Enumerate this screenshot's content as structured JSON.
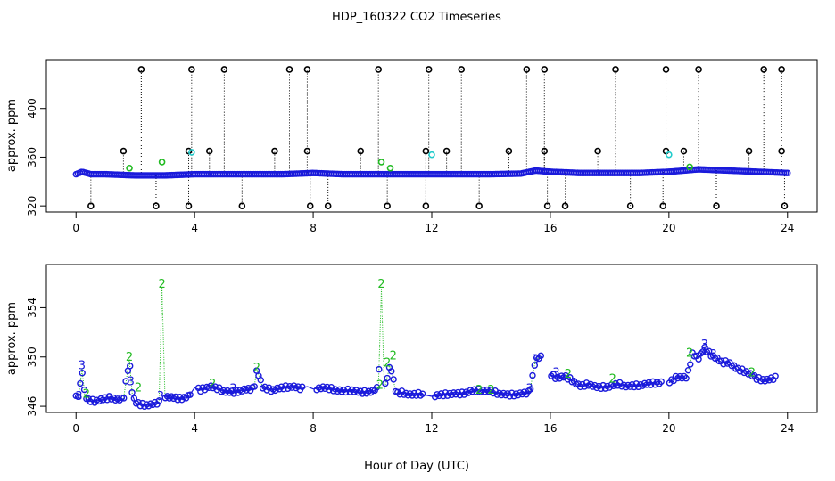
{
  "title": "HDP_160322  CO2 Timeseries",
  "xlabel": "Hour of Day (UTC)",
  "colors": {
    "level1": "#000000",
    "level2": "#22bb22",
    "level3": "#1a1adb",
    "cyan": "#22cccc",
    "axis": "#000000"
  },
  "chart_data": [
    {
      "type": "scatter",
      "title": "",
      "xlabel": "",
      "ylabel": "approx. ppm",
      "xlim": [
        -1,
        25
      ],
      "ylim": [
        315,
        440
      ],
      "xticks": [
        0,
        4,
        8,
        12,
        16,
        20,
        24
      ],
      "yticks": [
        320,
        360,
        400
      ],
      "ytick_labels": [
        "320",
        "360",
        "400"
      ],
      "xtick_labels": [
        "0",
        "4",
        "8",
        "12",
        "16",
        "20",
        "24"
      ],
      "baseline": [
        [
          0,
          346
        ],
        [
          0.2,
          348
        ],
        [
          0.5,
          346
        ],
        [
          1,
          346
        ],
        [
          2,
          345
        ],
        [
          3,
          345
        ],
        [
          4,
          346
        ],
        [
          5,
          346
        ],
        [
          6,
          346
        ],
        [
          7,
          346
        ],
        [
          8,
          347
        ],
        [
          9,
          346
        ],
        [
          10,
          346
        ],
        [
          11,
          346
        ],
        [
          12,
          346
        ],
        [
          13,
          346
        ],
        [
          14,
          346
        ],
        [
          15,
          346.5
        ],
        [
          15.5,
          349
        ],
        [
          16,
          348
        ],
        [
          17,
          347
        ],
        [
          18,
          347
        ],
        [
          19,
          347
        ],
        [
          20,
          348
        ],
        [
          21,
          350
        ],
        [
          22,
          349
        ],
        [
          23,
          348
        ],
        [
          24,
          347
        ]
      ],
      "outliers_high": [
        2.2,
        3.9,
        5.0,
        7.2,
        7.8,
        10.2,
        11.9,
        13.0,
        15.2,
        15.8,
        18.2,
        19.9,
        21.0,
        23.2,
        23.8
      ],
      "outliers_low": [
        0.5,
        2.7,
        3.8,
        5.6,
        7.9,
        8.5,
        10.5,
        11.8,
        13.6,
        15.9,
        16.5,
        18.7,
        19.8,
        21.6,
        23.9
      ],
      "outliers_mid": [
        1.6,
        3.8,
        4.5,
        6.7,
        7.8,
        9.6,
        11.8,
        12.5,
        14.6,
        15.8,
        17.6,
        19.9,
        20.5,
        22.7,
        23.8
      ],
      "level2_points": [
        [
          1.8,
          351
        ],
        [
          2.9,
          356
        ],
        [
          10.3,
          356
        ],
        [
          10.6,
          351
        ],
        [
          20.7,
          352
        ]
      ],
      "cyan_points": [
        [
          3.9,
          364
        ],
        [
          12.0,
          362
        ],
        [
          20.0,
          362
        ]
      ]
    },
    {
      "type": "line",
      "title": "",
      "xlabel": "",
      "ylabel": "approx. ppm",
      "xlim": [
        -1,
        25
      ],
      "ylim": [
        345.5,
        357.5
      ],
      "xticks": [
        0,
        4,
        8,
        12,
        16,
        20,
        24
      ],
      "yticks": [
        346,
        350,
        354
      ],
      "ytick_labels": [
        "346",
        "350",
        "354"
      ],
      "xtick_labels": [
        "0",
        "4",
        "8",
        "12",
        "16",
        "20",
        "24"
      ],
      "series": [
        {
          "values_x": [
            0,
            0.1,
            0.2,
            0.3,
            0.4,
            0.6,
            0.8,
            1.0,
            1.2,
            1.4,
            1.6,
            1.8,
            1.9,
            2.0,
            2.2,
            2.5,
            2.8,
            2.9,
            3.0,
            3.2,
            3.5,
            3.8,
            4.0,
            4.2,
            4.5,
            4.8,
            5.0,
            5.3,
            5.6,
            6.0,
            6.1,
            6.3,
            6.6,
            7.0,
            7.3,
            7.6,
            7.8,
            8.0,
            8.3,
            8.6,
            9.0,
            9.3,
            9.6,
            10.0,
            10.2,
            10.3,
            10.4,
            10.6,
            10.8,
            11.0,
            11.3,
            11.6,
            12.0,
            12.3,
            12.6,
            13.0,
            13.3,
            13.6,
            14.0,
            14.3,
            14.6,
            15.0,
            15.3,
            15.5,
            15.7,
            16.0,
            16.2,
            16.5,
            16.8,
            17.0,
            17.3,
            17.6,
            18.0,
            18.3,
            18.6,
            19.0,
            19.3,
            19.6,
            20.0,
            20.3,
            20.6,
            20.8,
            21.0,
            21.2,
            21.4,
            21.6,
            21.8,
            22.0,
            22.3,
            22.6,
            23.0,
            23.3,
            23.6
          ],
          "values_y": [
            346.7,
            347.0,
            349.0,
            346.8,
            346.5,
            346.4,
            346.5,
            346.6,
            346.7,
            346.5,
            346.6,
            349.8,
            346.9,
            346.3,
            346.1,
            346.1,
            346.3,
            355.6,
            346.8,
            346.7,
            346.6,
            346.8,
            347.5,
            347.3,
            347.6,
            347.4,
            347.2,
            347.1,
            347.3,
            347.4,
            349.0,
            347.5,
            347.3,
            347.5,
            347.6,
            347.4,
            347.6,
            347.4,
            347.5,
            347.4,
            347.2,
            347.3,
            347.1,
            347.2,
            347.5,
            355.5,
            347.4,
            349.4,
            347.0,
            347.1,
            346.9,
            347.0,
            346.8,
            346.9,
            347.0,
            347.0,
            347.2,
            347.3,
            347.2,
            347.0,
            346.9,
            347.0,
            347.1,
            349.8,
            350.0,
            348.6,
            348.3,
            348.4,
            348.0,
            347.6,
            347.8,
            347.5,
            347.6,
            347.8,
            347.6,
            347.7,
            347.8,
            347.9,
            347.9,
            348.4,
            348.3,
            350.3,
            349.9,
            350.7,
            350.2,
            349.9,
            349.5,
            349.6,
            349.0,
            348.8,
            348.2,
            348.1,
            348.3
          ]
        }
      ]
    }
  ]
}
